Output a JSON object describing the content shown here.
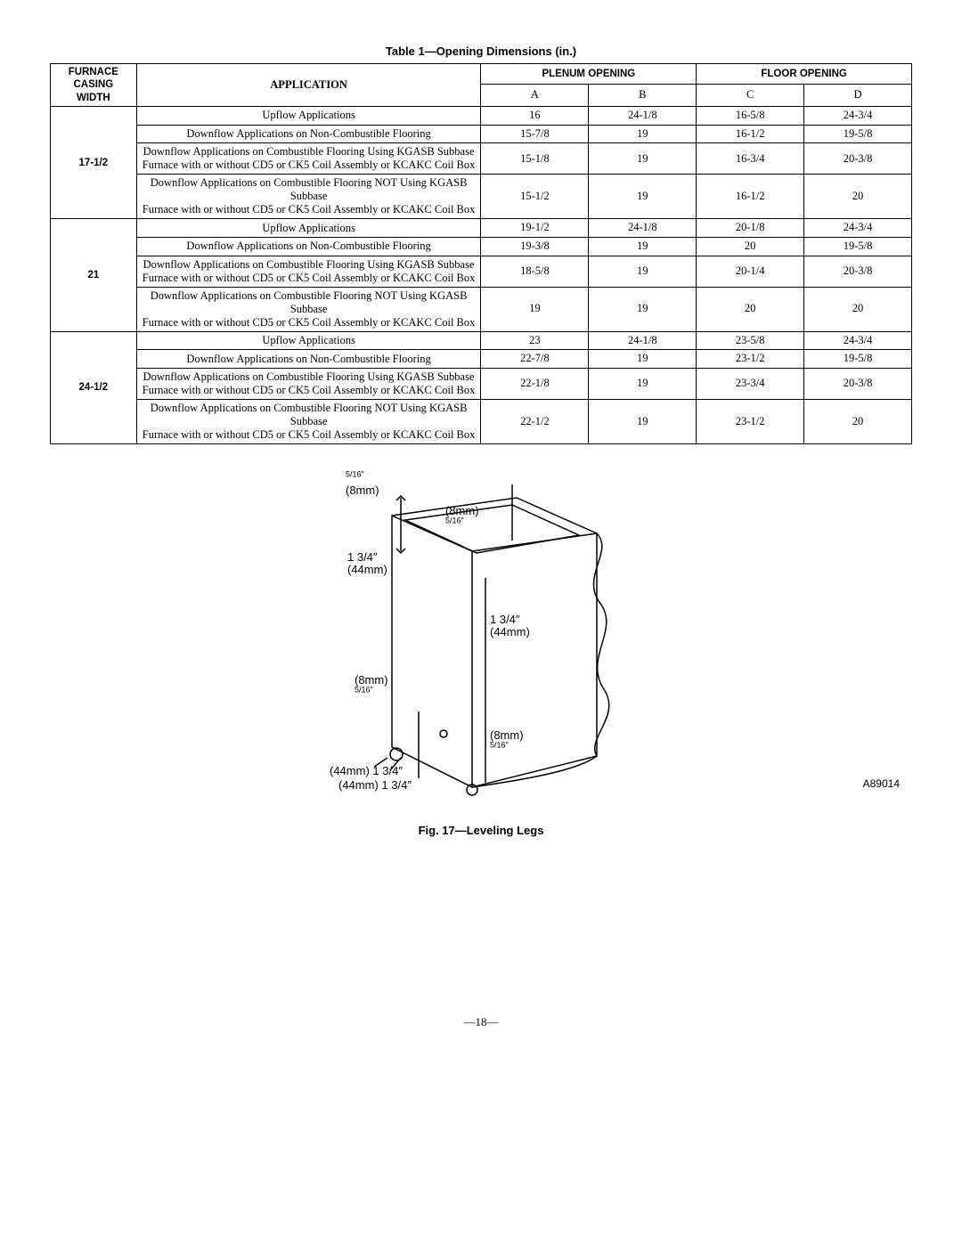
{
  "table": {
    "title": "Table 1—Opening Dimensions (in.)",
    "headers": {
      "casing": "FURNACE CASING WIDTH",
      "application": "APPLICATION",
      "plenum": "PLENUM OPENING",
      "floor": "FLOOR OPENING",
      "A": "A",
      "B": "B",
      "C": "C",
      "D": "D"
    },
    "groups": [
      {
        "casing": "17-1/2",
        "rows": [
          {
            "app": "Upflow Applications",
            "A": "16",
            "B": "24-1/8",
            "C": "16-5/8",
            "D": "24-3/4"
          },
          {
            "app": "Downflow Applications on Non-Combustible Flooring",
            "A": "15-7/8",
            "B": "19",
            "C": "16-1/2",
            "D": "19-5/8"
          },
          {
            "app": "Downflow Applications on Combustible Flooring Using KGASB Subbase\nFurnace with or without CD5 or CK5 Coil Assembly or KCAKC Coil Box",
            "A": "15-1/8",
            "B": "19",
            "C": "16-3/4",
            "D": "20-3/8"
          },
          {
            "app": "Downflow Applications on Combustible Flooring NOT Using KGASB Subbase\nFurnace with or without CD5 or CK5 Coil Assembly or KCAKC Coil Box",
            "A": "15-1/2",
            "B": "19",
            "C": "16-1/2",
            "D": "20"
          }
        ]
      },
      {
        "casing": "21",
        "rows": [
          {
            "app": "Upflow Applications",
            "A": "19-1/2",
            "B": "24-1/8",
            "C": "20-1/8",
            "D": "24-3/4"
          },
          {
            "app": "Downflow Applications on Non-Combustible Flooring",
            "A": "19-3/8",
            "B": "19",
            "C": "20",
            "D": "19-5/8"
          },
          {
            "app": "Downflow Applications on Combustible Flooring Using KGASB Subbase\nFurnace with or without CD5 or CK5 Coil Assembly or KCAKC Coil Box",
            "A": "18-5/8",
            "B": "19",
            "C": "20-1/4",
            "D": "20-3/8"
          },
          {
            "app": "Downflow Applications on Combustible Flooring NOT Using KGASB Subbase\nFurnace with or without CD5 or CK5 Coil Assembly or KCAKC Coil Box",
            "A": "19",
            "B": "19",
            "C": "20",
            "D": "20"
          }
        ]
      },
      {
        "casing": "24-1/2",
        "rows": [
          {
            "app": "Upflow Applications",
            "A": "23",
            "B": "24-1/8",
            "C": "23-5/8",
            "D": "24-3/4"
          },
          {
            "app": "Downflow Applications on Non-Combustible Flooring",
            "A": "22-7/8",
            "B": "19",
            "C": "23-1/2",
            "D": "19-5/8"
          },
          {
            "app": "Downflow Applications on Combustible Flooring Using KGASB Subbase\nFurnace with or without CD5 or CK5 Coil Assembly or KCAKC Coil Box",
            "A": "22-1/8",
            "B": "19",
            "C": "23-3/4",
            "D": "20-3/8"
          },
          {
            "app": "Downflow Applications on Combustible Flooring NOT Using KGASB Subbase\nFurnace with or without CD5 or CK5 Coil Assembly or KCAKC Coil Box",
            "A": "22-1/2",
            "B": "19",
            "C": "23-1/2",
            "D": "20"
          }
        ]
      }
    ]
  },
  "figure": {
    "caption": "Fig. 17—Leveling Legs",
    "code": "A89014",
    "labels": {
      "tl_frac": "5/16″",
      "tl_mm": "(8mm)",
      "tr_mm": "(8mm)",
      "tr_frac": "5/16″",
      "mid_l_in": "1 3/4″",
      "mid_l_mm": "(44mm)",
      "mid_r_in": "1 3/4″",
      "mid_r_mm": "(44mm)",
      "bl_mm": "(8mm)",
      "bl_frac": "5/16″",
      "br_mm": "(8mm)",
      "br_frac": "5/16″",
      "bb_l_mm": "(44mm)",
      "bb_l_in": "1 3/4″",
      "bb_r_mm": "(44mm)",
      "bb_r_in": "1 3/4″"
    }
  },
  "page": "—18—"
}
